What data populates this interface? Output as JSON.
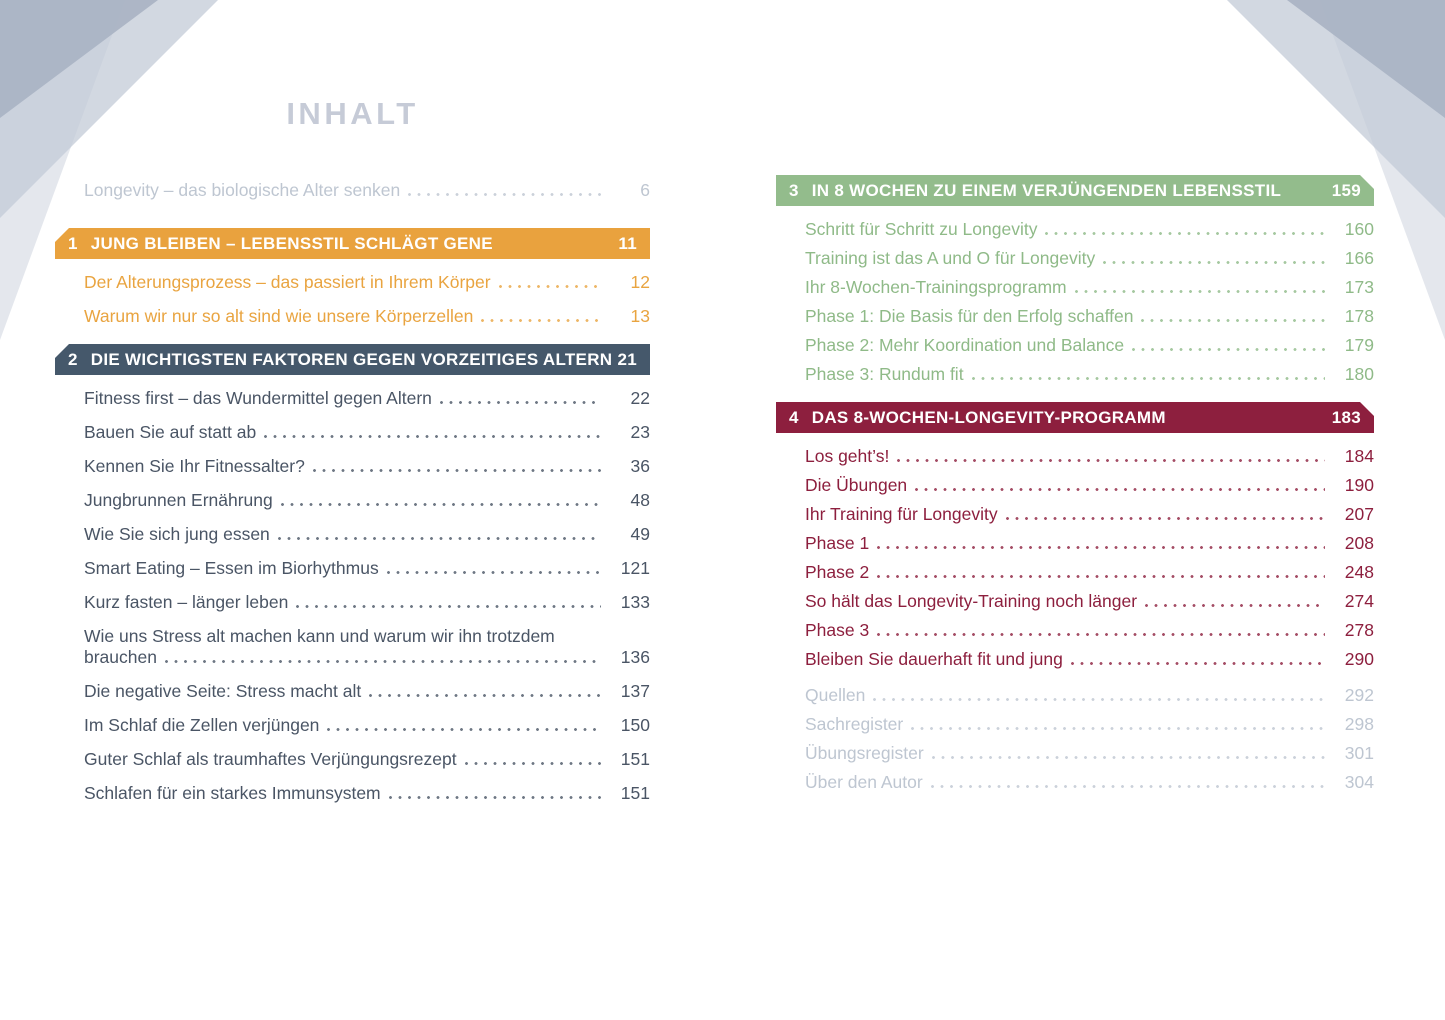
{
  "page_title": "INHALT",
  "colors": {
    "orange": "#e9a23e",
    "slate_blue": "#45586b",
    "green": "#93bc8c",
    "wine_red": "#8d1f3e",
    "muted_gray": "#bec6d1"
  },
  "intro": {
    "text": "Longevity – das biologische Alter senken",
    "page": "6"
  },
  "sections": [
    {
      "num": "1",
      "title": "JUNG BLEIBEN – LEBENSSTIL SCHLÄGT GENE",
      "page": "11",
      "items": [
        {
          "text": "Der Alterungsprozess – das passiert in Ihrem Körper",
          "page": "12"
        },
        {
          "text": "Warum wir nur so alt sind wie unsere Körperzellen",
          "page": "13"
        }
      ]
    },
    {
      "num": "2",
      "title": "DIE WICHTIGSTEN FAKTOREN GEGEN VORZEITIGES ALTERN",
      "page": "21",
      "items": [
        {
          "text": "Fitness first – das Wundermittel gegen Altern",
          "page": "22"
        },
        {
          "text": "Bauen Sie auf statt ab",
          "page": "23"
        },
        {
          "text": "Kennen Sie Ihr Fitnessalter?",
          "page": "36"
        },
        {
          "text": "Jungbrunnen Ernährung",
          "page": "48"
        },
        {
          "text": "Wie Sie sich jung essen",
          "page": "49"
        },
        {
          "text": "Smart Eating – Essen im Biorhythmus",
          "page": "121"
        },
        {
          "text": "Kurz fasten – länger leben",
          "page": "133"
        },
        {
          "line1": "Wie uns Stress alt machen kann und warum wir ihn trotzdem",
          "text": "brauchen",
          "page": "136"
        },
        {
          "text": "Die negative Seite: Stress macht alt",
          "page": "137"
        },
        {
          "text": "Im Schlaf die Zellen verjüngen",
          "page": "150"
        },
        {
          "text": "Guter Schlaf als traumhaftes Verjüngungsrezept",
          "page": "151"
        },
        {
          "text": "Schlafen für ein starkes Immunsystem",
          "page": "151"
        }
      ]
    },
    {
      "num": "3",
      "title": "IN 8 WOCHEN ZU EINEM VERJÜNGENDEN LEBENSSTIL",
      "page": "159",
      "items": [
        {
          "text": "Schritt für Schritt zu Longevity",
          "page": "160"
        },
        {
          "text": "Training ist das A und O für Longevity",
          "page": "166"
        },
        {
          "text": "Ihr 8-Wochen-Trainingsprogramm",
          "page": "173"
        },
        {
          "text": "Phase 1: Die Basis für den Erfolg schaffen",
          "page": "178"
        },
        {
          "text": "Phase 2: Mehr Koordination und Balance",
          "page": "179"
        },
        {
          "text": "Phase 3: Rundum fit",
          "page": "180"
        }
      ]
    },
    {
      "num": "4",
      "title": "DAS 8-WOCHEN-LONGEVITY-PROGRAMM",
      "page": "183",
      "items": [
        {
          "text": "Los geht’s!",
          "page": "184"
        },
        {
          "text": "Die Übungen",
          "page": "190"
        },
        {
          "text": "Ihr Training für Longevity",
          "page": "207"
        },
        {
          "text": "Phase 1",
          "page": "208"
        },
        {
          "text": "Phase 2",
          "page": "248"
        },
        {
          "text": "So hält das Longevity-Training noch länger",
          "page": "274"
        },
        {
          "text": "Phase 3",
          "page": "278"
        },
        {
          "text": "Bleiben Sie dauerhaft fit und jung",
          "page": "290"
        }
      ]
    }
  ],
  "backmatter": [
    {
      "text": "Quellen",
      "page": "292"
    },
    {
      "text": "Sachregister",
      "page": "298"
    },
    {
      "text": "Übungsregister",
      "page": "301"
    },
    {
      "text": "Über den Autor",
      "page": "304"
    }
  ]
}
